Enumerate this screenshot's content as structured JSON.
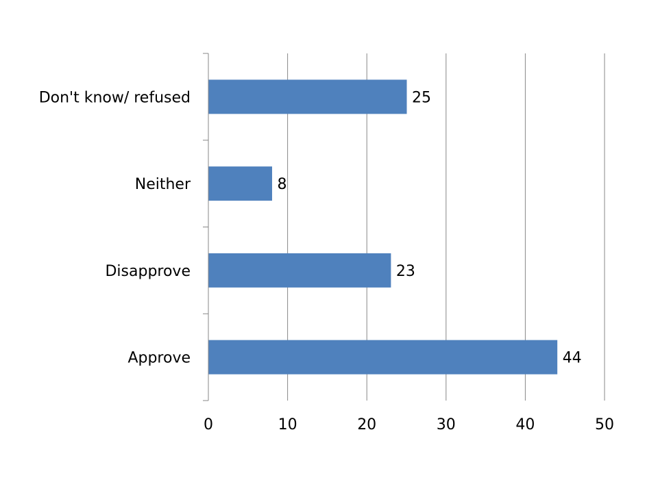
{
  "chart_data": {
    "type": "bar",
    "orientation": "horizontal",
    "categories": [
      "Approve",
      "Disapprove",
      "Neither",
      "Don't know/ refused"
    ],
    "values": [
      44,
      23,
      8,
      25
    ],
    "data_labels": [
      "44",
      "23",
      "8",
      "25"
    ],
    "title": "",
    "xlabel": "",
    "ylabel": "",
    "xlim": [
      0,
      50
    ],
    "xticks": [
      0,
      10,
      20,
      30,
      40,
      50
    ],
    "xtick_labels": [
      "0",
      "10",
      "20",
      "30",
      "40",
      "50"
    ],
    "grid": "vertical",
    "legend": "none",
    "bar_color": "#4F81BD"
  }
}
